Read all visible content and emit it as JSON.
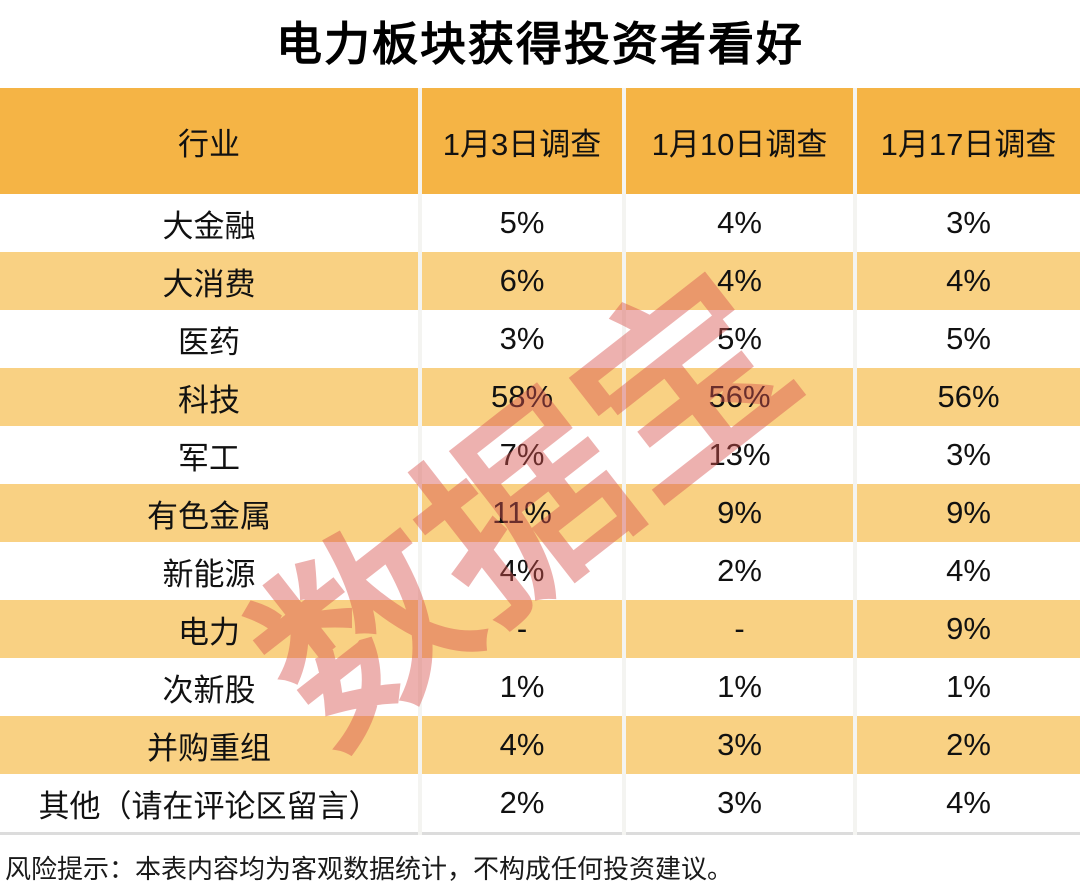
{
  "title": "电力板块获得投资者看好",
  "watermark": "数据宝",
  "disclaimer": "风险提示：本表内容均为客观数据统计，不构成任何投资建议。",
  "colors": {
    "header_bg": "#F5B445",
    "row_alt_bg": "#F9D183",
    "watermark_red": "#D8524E",
    "text": "#111111"
  },
  "chart_data": {
    "type": "table",
    "title": "电力板块获得投资者看好",
    "columns": [
      "行业",
      "1月3日调查",
      "1月10日调查",
      "1月17日调查"
    ],
    "rows": [
      [
        "大金融",
        "5%",
        "4%",
        "3%"
      ],
      [
        "大消费",
        "6%",
        "4%",
        "4%"
      ],
      [
        "医药",
        "3%",
        "5%",
        "5%"
      ],
      [
        "科技",
        "58%",
        "56%",
        "56%"
      ],
      [
        "军工",
        "7%",
        "13%",
        "3%"
      ],
      [
        "有色金属",
        "11%",
        "9%",
        "9%"
      ],
      [
        "新能源",
        "4%",
        "2%",
        "4%"
      ],
      [
        "电力",
        "-",
        "-",
        "9%"
      ],
      [
        "次新股",
        "1%",
        "1%",
        "1%"
      ],
      [
        "并购重组",
        "4%",
        "3%",
        "2%"
      ],
      [
        "其他（请在评论区留言）",
        "2%",
        "3%",
        "4%"
      ]
    ]
  }
}
